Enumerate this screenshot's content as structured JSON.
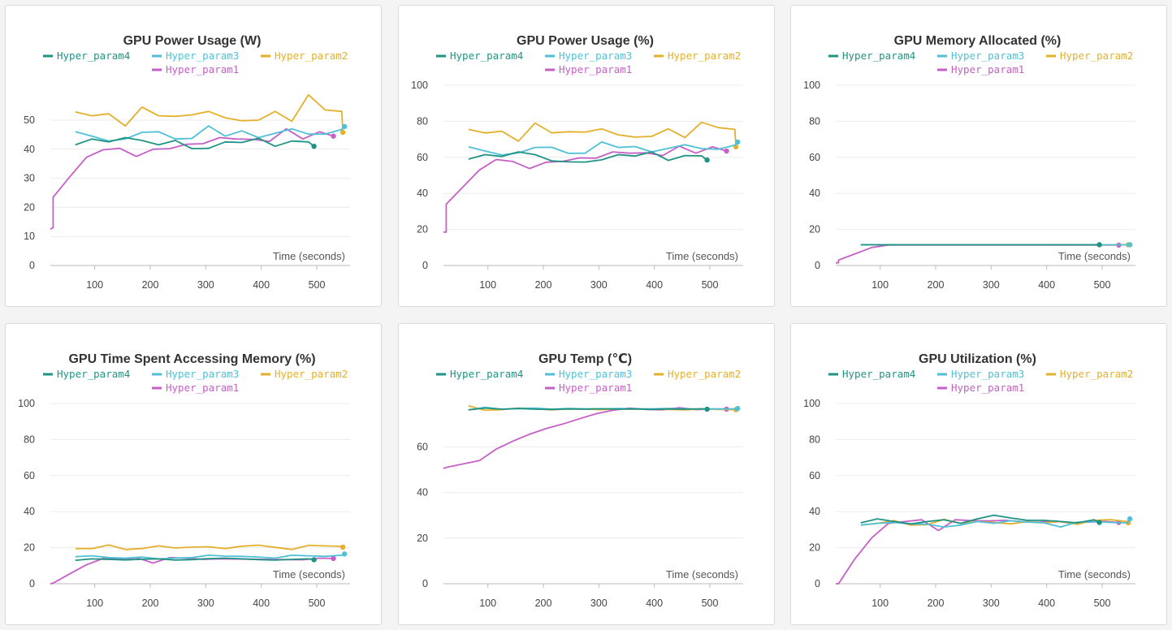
{
  "colors": {
    "Hyper_param4": "#1f9484",
    "Hyper_param3": "#4fc0d6",
    "Hyper_param2": "#e4b02c",
    "Hyper_param1": "#c65fc6",
    "grid": "#ececec",
    "axis": "#dcdcdc"
  },
  "chart_data": [
    {
      "type": "line",
      "title": "GPU Power Usage (W)",
      "xlabel": "Time (seconds)",
      "ylabel": "",
      "xticks": [
        100,
        200,
        300,
        400,
        500
      ],
      "yticks": [
        0,
        10,
        20,
        30,
        40,
        50
      ],
      "xlim": [
        20,
        560
      ],
      "ylim": [
        0,
        62
      ],
      "legend_rows": [
        [
          "Hyper_param4",
          "Hyper_param3",
          "Hyper_param2"
        ],
        [
          "Hyper_param1"
        ]
      ],
      "series": [
        {
          "name": "Hyper_param4",
          "color": "#1f9484",
          "x": [
            65,
            95,
            125,
            155,
            185,
            215,
            245,
            275,
            305,
            335,
            365,
            395,
            425,
            455,
            485,
            495
          ],
          "y": [
            41.5,
            43.5,
            42.5,
            44,
            43,
            41.5,
            43,
            40.2,
            40.3,
            42.5,
            42.3,
            43.8,
            41,
            42.8,
            42.5,
            41
          ]
        },
        {
          "name": "Hyper_param3",
          "color": "#4fc0d6",
          "x": [
            65,
            95,
            125,
            155,
            185,
            215,
            245,
            275,
            305,
            335,
            365,
            395,
            425,
            455,
            485,
            515,
            545,
            550
          ],
          "y": [
            46,
            44.5,
            42.8,
            43.5,
            45.8,
            46,
            43.5,
            43.7,
            48,
            44.5,
            46.3,
            44,
            45.5,
            47,
            45.2,
            45.2,
            46.8,
            47.8
          ]
        },
        {
          "name": "Hyper_param2",
          "color": "#e4b02c",
          "x": [
            65,
            95,
            125,
            155,
            185,
            215,
            245,
            275,
            305,
            335,
            365,
            395,
            425,
            455,
            485,
            515,
            545,
            547
          ],
          "y": [
            52.8,
            51.5,
            52.2,
            48,
            54.5,
            51.5,
            51.3,
            51.8,
            53,
            50.8,
            49.8,
            50,
            53,
            49.6,
            58.7,
            53.5,
            53,
            45.8
          ]
        },
        {
          "name": "Hyper_param1",
          "color": "#c65fc6",
          "x": [
            20,
            25,
            25,
            55,
            85,
            115,
            145,
            175,
            205,
            235,
            265,
            295,
            325,
            355,
            385,
            415,
            445,
            475,
            505,
            530
          ],
          "y": [
            12.5,
            13,
            23.5,
            30.5,
            37.2,
            39.8,
            40.3,
            37.5,
            40,
            40.2,
            41.7,
            41.9,
            44,
            43.5,
            43.4,
            42.7,
            47,
            43.5,
            46,
            44.5
          ]
        }
      ]
    },
    {
      "type": "line",
      "title": "GPU Power Usage (%)",
      "xlabel": "Time (seconds)",
      "ylabel": "",
      "xticks": [
        100,
        200,
        300,
        400,
        500
      ],
      "yticks": [
        0,
        20,
        40,
        60,
        80,
        100
      ],
      "xlim": [
        20,
        560
      ],
      "ylim": [
        0,
        100
      ],
      "legend_rows": [
        [
          "Hyper_param4",
          "Hyper_param3",
          "Hyper_param2"
        ],
        [
          "Hyper_param1"
        ]
      ],
      "series": [
        {
          "name": "Hyper_param4",
          "color": "#1f9484",
          "x": [
            65,
            95,
            125,
            155,
            185,
            215,
            245,
            275,
            305,
            335,
            365,
            395,
            425,
            455,
            485,
            495
          ],
          "y": [
            59,
            61.5,
            60.5,
            63,
            61.5,
            58,
            57.5,
            57.4,
            58.6,
            61.5,
            60.7,
            63,
            58.3,
            61,
            60.8,
            58.5
          ]
        },
        {
          "name": "Hyper_param3",
          "color": "#4fc0d6",
          "x": [
            65,
            95,
            125,
            155,
            185,
            215,
            245,
            275,
            305,
            335,
            365,
            395,
            425,
            455,
            485,
            515,
            545,
            550
          ],
          "y": [
            65.8,
            63.5,
            61.3,
            62.5,
            65.5,
            65.6,
            62.2,
            62.3,
            68.5,
            65.5,
            66,
            63,
            65,
            67,
            64.8,
            64.5,
            66.8,
            68.5
          ]
        },
        {
          "name": "Hyper_param2",
          "color": "#e4b02c",
          "x": [
            65,
            95,
            125,
            155,
            185,
            215,
            245,
            275,
            305,
            335,
            365,
            395,
            425,
            455,
            485,
            515,
            545,
            547
          ],
          "y": [
            75.5,
            73.5,
            74.5,
            69,
            79,
            73.6,
            74.2,
            74,
            75.8,
            72.5,
            71.2,
            71.6,
            75.8,
            71,
            79.4,
            76.5,
            75.5,
            65.8
          ]
        },
        {
          "name": "Hyper_param1",
          "color": "#c65fc6",
          "x": [
            20,
            25,
            25,
            55,
            85,
            115,
            145,
            175,
            205,
            235,
            265,
            295,
            325,
            355,
            385,
            415,
            445,
            475,
            505,
            530
          ],
          "y": [
            18.5,
            18.5,
            34,
            43.5,
            53,
            58.8,
            57.7,
            53.8,
            57.3,
            57.8,
            59.7,
            59.5,
            63,
            62.3,
            62.5,
            61,
            66.2,
            62.3,
            65.8,
            63.5
          ]
        }
      ]
    },
    {
      "type": "line",
      "title": "GPU Memory Allocated (%)",
      "xlabel": "Time (seconds)",
      "ylabel": "",
      "xticks": [
        100,
        200,
        300,
        400,
        500
      ],
      "yticks": [
        0,
        20,
        40,
        60,
        80,
        100
      ],
      "xlim": [
        20,
        560
      ],
      "ylim": [
        0,
        100
      ],
      "legend_rows": [
        [
          "Hyper_param4",
          "Hyper_param3",
          "Hyper_param2"
        ],
        [
          "Hyper_param1"
        ]
      ],
      "series": [
        {
          "name": "Hyper_param4",
          "color": "#1f9484",
          "x": [
            65,
            495
          ],
          "y": [
            11.5,
            11.5
          ]
        },
        {
          "name": "Hyper_param3",
          "color": "#4fc0d6",
          "x": [
            65,
            550
          ],
          "y": [
            11.5,
            11.5
          ]
        },
        {
          "name": "Hyper_param2",
          "color": "#e4b02c",
          "x": [
            65,
            547
          ],
          "y": [
            11.5,
            11.5
          ]
        },
        {
          "name": "Hyper_param1",
          "color": "#c65fc6",
          "x": [
            20,
            25,
            25,
            55,
            85,
            115,
            530
          ],
          "y": [
            1.5,
            1.5,
            3,
            6.5,
            10,
            11.3,
            11.3
          ]
        }
      ]
    },
    {
      "type": "line",
      "title": "GPU Time Spent Accessing Memory (%)",
      "xlabel": "Time (seconds)",
      "ylabel": "",
      "xticks": [
        100,
        200,
        300,
        400,
        500
      ],
      "yticks": [
        0,
        20,
        40,
        60,
        80,
        100
      ],
      "xlim": [
        20,
        560
      ],
      "ylim": [
        0,
        100
      ],
      "legend_rows": [
        [
          "Hyper_param4",
          "Hyper_param3",
          "Hyper_param2"
        ],
        [
          "Hyper_param1"
        ]
      ],
      "series": [
        {
          "name": "Hyper_param4",
          "color": "#1f9484",
          "x": [
            65,
            95,
            125,
            155,
            185,
            215,
            245,
            275,
            305,
            335,
            365,
            395,
            425,
            455,
            485,
            495
          ],
          "y": [
            13,
            13.8,
            13.5,
            13.2,
            13.6,
            13.8,
            13.1,
            13.4,
            13.9,
            14.2,
            13.8,
            13.4,
            13.1,
            13.5,
            13.8,
            13.3
          ]
        },
        {
          "name": "Hyper_param3",
          "color": "#4fc0d6",
          "x": [
            65,
            95,
            125,
            155,
            185,
            215,
            245,
            275,
            305,
            335,
            365,
            395,
            425,
            455,
            485,
            515,
            545,
            550
          ],
          "y": [
            15,
            15.5,
            14.5,
            14.2,
            14.8,
            13.8,
            14.2,
            14.5,
            15.8,
            15.3,
            15.2,
            14.8,
            14.2,
            15.8,
            15.5,
            15.2,
            15.8,
            16.5
          ]
        },
        {
          "name": "Hyper_param2",
          "color": "#e4b02c",
          "x": [
            65,
            95,
            125,
            155,
            185,
            215,
            245,
            275,
            305,
            335,
            365,
            395,
            425,
            455,
            485,
            515,
            545,
            547
          ],
          "y": [
            19.5,
            19.5,
            21.5,
            19,
            19.5,
            21,
            19.8,
            20.3,
            20.5,
            19.5,
            20.8,
            21.4,
            20.2,
            19,
            21.3,
            21,
            20.7,
            20.3
          ]
        },
        {
          "name": "Hyper_param1",
          "color": "#c65fc6",
          "x": [
            20,
            25,
            55,
            85,
            115,
            145,
            175,
            205,
            235,
            265,
            295,
            325,
            355,
            385,
            415,
            445,
            475,
            505,
            530
          ],
          "y": [
            0,
            0.3,
            5.5,
            10.5,
            14,
            13.5,
            14.5,
            11.5,
            14.5,
            14.2,
            13.5,
            13.8,
            13.7,
            13.6,
            13.5,
            13.4,
            13.3,
            14.2,
            14
          ]
        }
      ]
    },
    {
      "type": "line",
      "title": "GPU Temp (℃)",
      "xlabel": "Time (seconds)",
      "ylabel": "",
      "xticks": [
        100,
        200,
        300,
        400,
        500
      ],
      "yticks": [
        0,
        20,
        40,
        60
      ],
      "xlim": [
        20,
        560
      ],
      "ylim": [
        0,
        79
      ],
      "legend_rows": [
        [
          "Hyper_param4",
          "Hyper_param3",
          "Hyper_param2"
        ],
        [
          "Hyper_param1"
        ]
      ],
      "series": [
        {
          "name": "Hyper_param4",
          "color": "#1f9484",
          "x": [
            65,
            95,
            125,
            155,
            185,
            215,
            245,
            275,
            305,
            335,
            365,
            395,
            425,
            455,
            485,
            495
          ],
          "y": [
            76.2,
            77,
            76.5,
            76.8,
            76.5,
            76.4,
            76.6,
            76.5,
            76.7,
            76.5,
            76.6,
            76.4,
            76.6,
            76.5,
            76.7,
            76.5
          ]
        },
        {
          "name": "Hyper_param3",
          "color": "#4fc0d6",
          "x": [
            65,
            95,
            125,
            155,
            185,
            215,
            245,
            275,
            305,
            335,
            365,
            395,
            425,
            455,
            485,
            515,
            545,
            550
          ],
          "y": [
            76.2,
            77.3,
            76.5,
            76.8,
            77,
            76.5,
            76.8,
            76.7,
            76.6,
            76.8,
            76.7,
            76.6,
            76.8,
            76.7,
            76.5,
            76.6,
            76.6,
            76.8
          ]
        },
        {
          "name": "Hyper_param2",
          "color": "#e4b02c",
          "x": [
            65,
            95,
            125,
            155,
            185,
            215,
            245,
            275,
            305,
            335,
            365,
            395,
            425,
            455,
            485,
            515,
            545,
            547
          ],
          "y": [
            78,
            76,
            76.3,
            77,
            76.7,
            76.2,
            76.6,
            76.5,
            76.3,
            76.6,
            76.5,
            76.5,
            76.4,
            76.2,
            76.6,
            76.4,
            76.3,
            76.3
          ]
        },
        {
          "name": "Hyper_param1",
          "color": "#c65fc6",
          "x": [
            20,
            25,
            85,
            115,
            145,
            175,
            205,
            235,
            265,
            295,
            325,
            355,
            385,
            415,
            445,
            475,
            505,
            530
          ],
          "y": [
            50.5,
            51,
            54,
            59,
            62.5,
            65.5,
            68,
            70,
            72.3,
            74.5,
            76,
            77,
            76.4,
            76.2,
            77.2,
            76.3,
            76.6,
            76.5
          ]
        }
      ]
    },
    {
      "type": "line",
      "title": "GPU Utilization (%)",
      "xlabel": "Time (seconds)",
      "ylabel": "",
      "xticks": [
        100,
        200,
        300,
        400,
        500
      ],
      "yticks": [
        0,
        20,
        40,
        60,
        80,
        100
      ],
      "xlim": [
        20,
        560
      ],
      "ylim": [
        0,
        100
      ],
      "legend_rows": [
        [
          "Hyper_param4",
          "Hyper_param3",
          "Hyper_param2"
        ],
        [
          "Hyper_param1"
        ]
      ],
      "series": [
        {
          "name": "Hyper_param4",
          "color": "#1f9484",
          "x": [
            65,
            95,
            125,
            155,
            185,
            215,
            245,
            275,
            305,
            335,
            365,
            395,
            425,
            455,
            485,
            495
          ],
          "y": [
            33.8,
            36,
            34.5,
            33.2,
            34.5,
            35.5,
            33.5,
            36,
            38,
            36.5,
            35.2,
            35.2,
            34.5,
            33.8,
            35.5,
            34
          ]
        },
        {
          "name": "Hyper_param3",
          "color": "#4fc0d6",
          "x": [
            65,
            95,
            125,
            155,
            185,
            215,
            245,
            275,
            305,
            335,
            365,
            395,
            425,
            455,
            485,
            515,
            545,
            550
          ],
          "y": [
            32.5,
            33.5,
            34,
            33.2,
            33,
            31.5,
            32.5,
            34.5,
            33.5,
            35,
            34.2,
            33.8,
            31.5,
            34.2,
            34.5,
            34,
            33.8,
            36
          ]
        },
        {
          "name": "Hyper_param2",
          "color": "#e4b02c",
          "x": [
            65,
            95,
            125,
            155,
            185,
            215,
            245,
            275,
            305,
            335,
            365,
            395,
            425,
            455,
            485,
            515,
            545,
            547
          ],
          "y": [
            32.5,
            33.5,
            35,
            32.5,
            32.8,
            35.7,
            33.5,
            34.5,
            34,
            33.2,
            34.5,
            33.8,
            34.5,
            33,
            35.2,
            35.5,
            34.5,
            33.8
          ]
        },
        {
          "name": "Hyper_param1",
          "color": "#c65fc6",
          "x": [
            20,
            25,
            55,
            85,
            115,
            145,
            175,
            205,
            235,
            265,
            295,
            325,
            355,
            385,
            415,
            445,
            475,
            505,
            530
          ],
          "y": [
            0,
            0,
            14,
            25.5,
            33.5,
            34.5,
            35.5,
            29.5,
            35.5,
            35,
            34.8,
            35.2,
            34.5,
            34.2,
            34.8,
            33.5,
            34.2,
            34.5,
            34
          ]
        }
      ]
    }
  ]
}
